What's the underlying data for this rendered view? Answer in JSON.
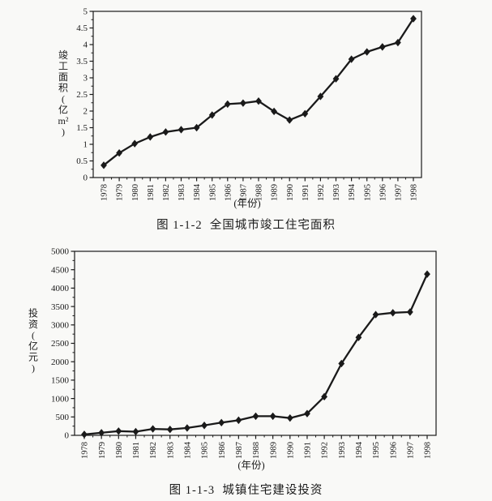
{
  "page": {
    "background": "#f9f9f7",
    "ink": "#1a1a1a"
  },
  "chart_data": [
    {
      "type": "line",
      "title": "图 1-1-2  全国城市竣工住宅面积",
      "xlabel": "(年份)",
      "ylabel": "竣工面积(亿 m²)",
      "x": [
        1978,
        1979,
        1980,
        1981,
        1982,
        1983,
        1984,
        1985,
        1986,
        1987,
        1988,
        1989,
        1990,
        1991,
        1992,
        1993,
        1994,
        1995,
        1996,
        1997,
        1998
      ],
      "series": [
        {
          "name": "全国城市竣工住宅面积",
          "marker": "diamond",
          "values": [
            0.37,
            0.74,
            1.02,
            1.22,
            1.37,
            1.44,
            1.5,
            1.88,
            2.21,
            2.24,
            2.3,
            1.99,
            1.73,
            1.92,
            2.44,
            2.97,
            3.56,
            3.78,
            3.93,
            4.06,
            4.78
          ]
        }
      ],
      "ylim": [
        0,
        5
      ],
      "yticks": [
        0,
        0.5,
        1,
        1.5,
        2,
        2.5,
        3,
        3.5,
        4,
        4.5,
        5
      ],
      "ytick_labels": [
        "0",
        "0.5",
        "1",
        "1.5",
        "2",
        "2.5",
        "3",
        "3.5",
        "4",
        "4.5",
        "5"
      ],
      "grid": false,
      "legend_position": "none"
    },
    {
      "type": "line",
      "title": "图 1-1-3  城镇住宅建设投资",
      "xlabel": "(年份)",
      "ylabel": "投资(亿元)",
      "x": [
        1978,
        1979,
        1980,
        1981,
        1982,
        1983,
        1984,
        1985,
        1986,
        1987,
        1988,
        1989,
        1990,
        1991,
        1992,
        1993,
        1994,
        1995,
        1996,
        1997,
        1998
      ],
      "series": [
        {
          "name": "城镇住宅建设投资",
          "marker": "diamond",
          "values": [
            25,
            70,
            115,
            100,
            175,
            160,
            200,
            270,
            345,
            410,
            520,
            520,
            470,
            590,
            1050,
            1950,
            2660,
            3280,
            3330,
            3350,
            4380
          ]
        }
      ],
      "ylim": [
        0,
        5000
      ],
      "yticks": [
        0,
        500,
        1000,
        1500,
        2000,
        2500,
        3000,
        3500,
        4000,
        4500,
        5000
      ],
      "ytick_labels": [
        "0",
        "500",
        "1000",
        "1500",
        "2000",
        "2500",
        "3000",
        "3500",
        "4000",
        "4500",
        "5000"
      ],
      "grid": false,
      "legend_position": "none"
    }
  ]
}
